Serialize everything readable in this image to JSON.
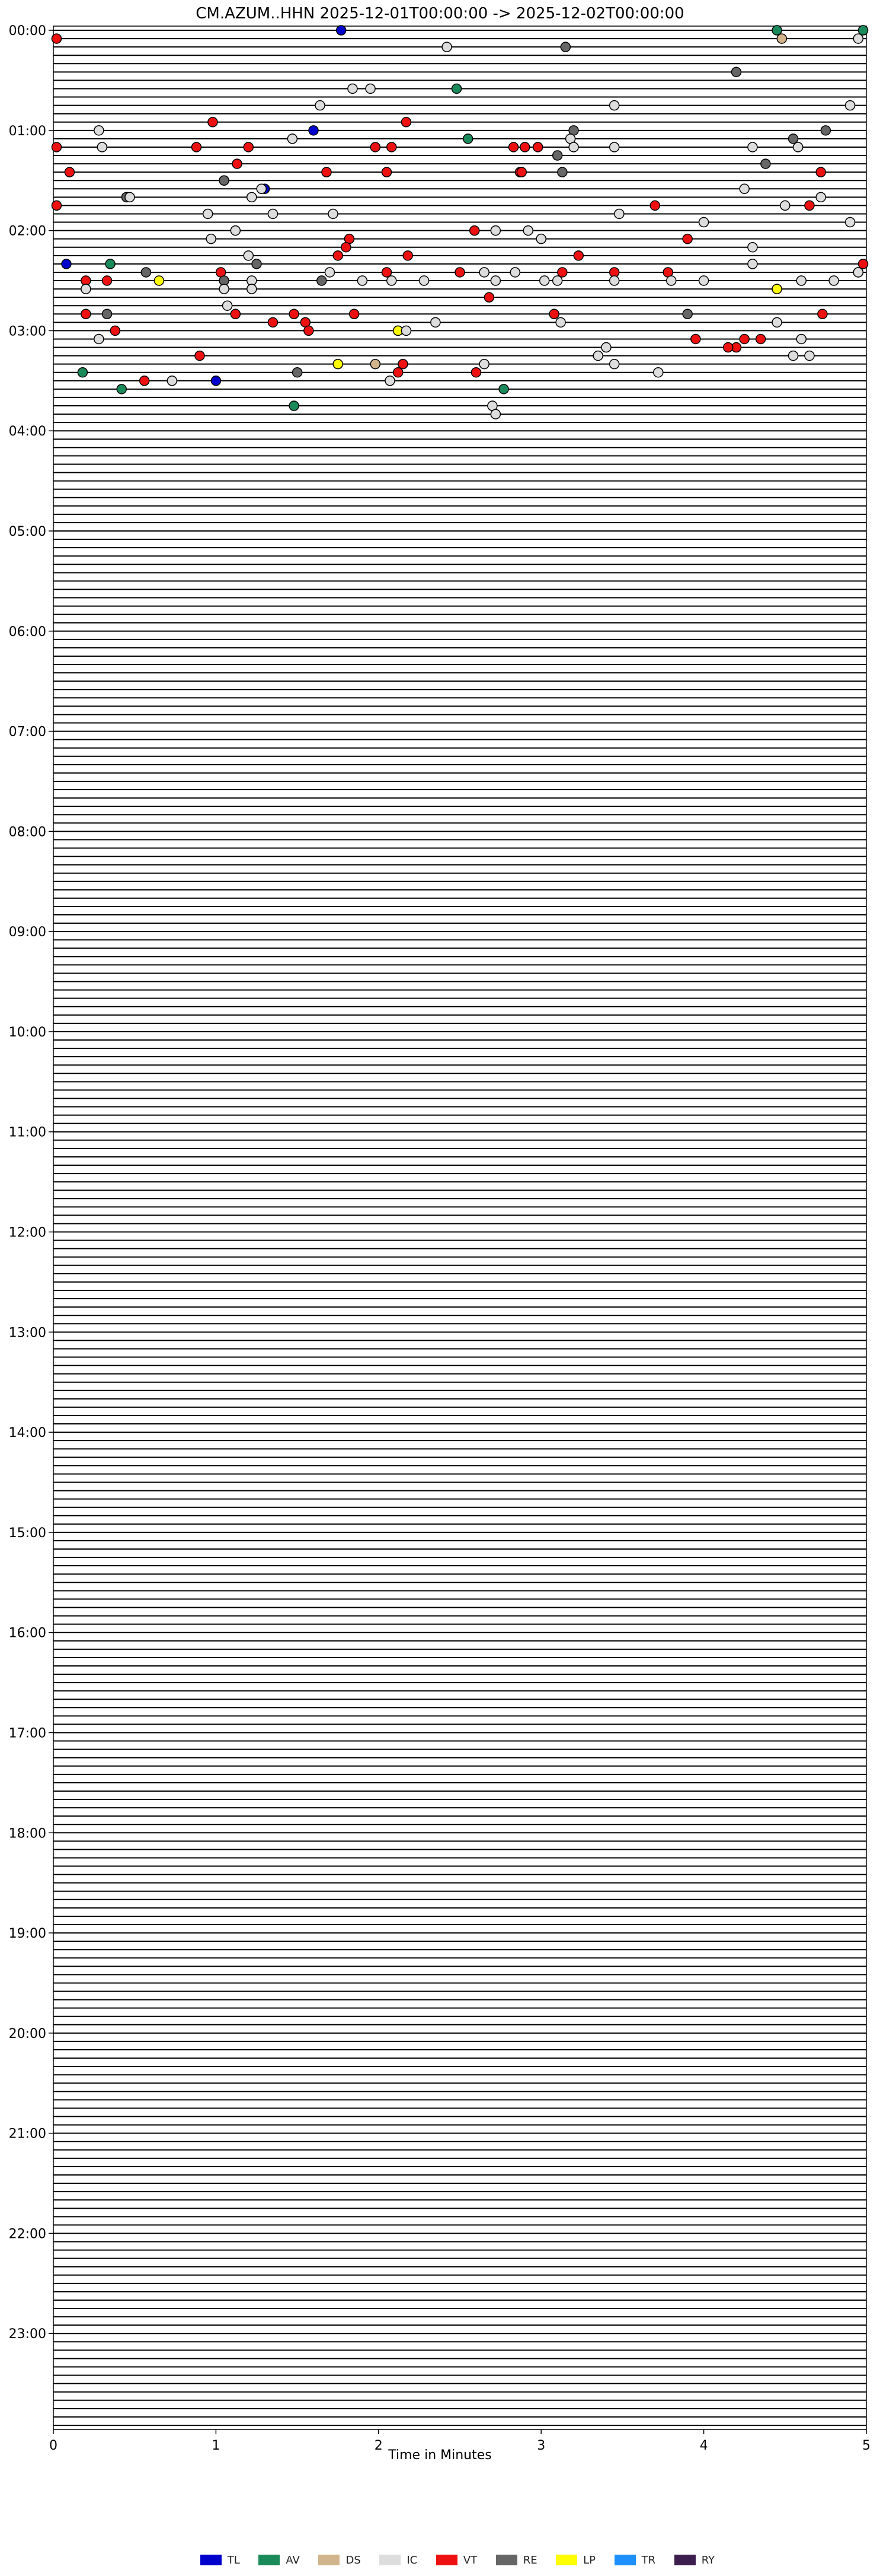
{
  "title": "CM.AZUM..HHN  2025-12-01T00:00:00 -> 2025-12-02T00:00:00",
  "chart_data": {
    "type": "scatter",
    "title": "CM.AZUM..HHN  2025-12-01T00:00:00 -> 2025-12-02T00:00:00",
    "xlabel": "Time in Minutes",
    "xlim": [
      0,
      5
    ],
    "x_ticks": [
      "0",
      "1",
      "2",
      "3",
      "4",
      "5"
    ],
    "row_minutes": 5,
    "rows": 288,
    "y_ticks": [
      "00:00",
      "01:00",
      "02:00",
      "03:00",
      "04:00",
      "05:00",
      "06:00",
      "07:00",
      "08:00",
      "09:00",
      "10:00",
      "11:00",
      "12:00",
      "13:00",
      "14:00",
      "15:00",
      "16:00",
      "17:00",
      "18:00",
      "19:00",
      "20:00",
      "21:00",
      "22:00",
      "23:00"
    ],
    "classes": [
      {
        "code": "TL",
        "color": "#0000cc"
      },
      {
        "code": "AV",
        "color": "#1a8a5a"
      },
      {
        "code": "DS",
        "color": "#d2b48c"
      },
      {
        "code": "IC",
        "color": "#dddddd"
      },
      {
        "code": "VT",
        "color": "#ee1111"
      },
      {
        "code": "RE",
        "color": "#666666"
      },
      {
        "code": "LP",
        "color": "#ffff00"
      },
      {
        "code": "TR",
        "color": "#1e90ff"
      },
      {
        "code": "RY",
        "color": "#3d1f4f"
      }
    ],
    "unclassified_color": "#ffffff",
    "events": [
      [
        "00:00",
        1.77,
        "TL"
      ],
      [
        "00:00",
        4.45,
        "AV"
      ],
      [
        "00:00",
        4.98,
        "AV"
      ],
      [
        "00:05",
        4.48,
        "DS"
      ],
      [
        "00:05",
        4.95,
        "IC"
      ],
      [
        "00:05",
        0.02,
        "VT"
      ],
      [
        "00:10",
        2.42,
        "IC"
      ],
      [
        "00:10",
        3.15,
        "RE"
      ],
      [
        "00:25",
        4.2,
        "RE"
      ],
      [
        "00:35",
        2.48,
        "AV"
      ],
      [
        "00:35",
        1.84,
        "IC"
      ],
      [
        "00:35",
        1.95,
        "IC"
      ],
      [
        "00:45",
        1.64,
        "IC"
      ],
      [
        "00:45",
        3.45,
        "IC"
      ],
      [
        "00:45",
        4.9,
        "IC"
      ],
      [
        "00:55",
        0.98,
        "VT"
      ],
      [
        "00:55",
        2.17,
        "VT"
      ],
      [
        "01:00",
        0.28,
        "IC"
      ],
      [
        "01:00",
        1.6,
        "TL"
      ],
      [
        "01:00",
        3.2,
        "RE"
      ],
      [
        "01:00",
        4.75,
        "RE"
      ],
      [
        "01:05",
        1.47,
        "IC"
      ],
      [
        "01:05",
        2.55,
        "AV"
      ],
      [
        "01:05",
        3.18,
        "IC"
      ],
      [
        "01:05",
        4.55,
        "RE"
      ],
      [
        "01:10",
        0.02,
        "VT"
      ],
      [
        "01:10",
        0.3,
        "IC"
      ],
      [
        "01:10",
        0.88,
        "VT"
      ],
      [
        "01:10",
        1.2,
        "VT"
      ],
      [
        "01:10",
        1.98,
        "VT"
      ],
      [
        "01:10",
        2.08,
        "VT"
      ],
      [
        "01:10",
        2.83,
        "VT"
      ],
      [
        "01:10",
        2.9,
        "VT"
      ],
      [
        "01:10",
        2.98,
        "VT"
      ],
      [
        "01:10",
        3.2,
        "IC"
      ],
      [
        "01:10",
        3.45,
        "IC"
      ],
      [
        "01:10",
        4.3,
        "IC"
      ],
      [
        "01:10",
        4.58,
        "IC"
      ],
      [
        "01:15",
        3.1,
        "RE"
      ],
      [
        "01:20",
        1.13,
        "VT"
      ],
      [
        "01:20",
        4.38,
        "RE"
      ],
      [
        "01:25",
        0.1,
        "VT"
      ],
      [
        "01:25",
        1.68,
        "VT"
      ],
      [
        "01:25",
        2.05,
        "VT"
      ],
      [
        "01:25",
        2.87,
        "VT"
      ],
      [
        "01:25",
        2.88,
        "VT"
      ],
      [
        "01:25",
        3.13,
        "RE"
      ],
      [
        "01:25",
        4.72,
        "VT"
      ],
      [
        "01:30",
        1.05,
        "LP"
      ],
      [
        "01:30",
        1.05,
        "RE"
      ],
      [
        "01:35",
        1.3,
        "TL"
      ],
      [
        "01:35",
        1.28,
        "IC"
      ],
      [
        "01:35",
        4.25,
        "IC"
      ],
      [
        "01:40",
        0.45,
        "AV"
      ],
      [
        "01:40",
        0.45,
        "RE"
      ],
      [
        "01:40",
        0.47,
        "IC"
      ],
      [
        "01:40",
        1.22,
        "IC"
      ],
      [
        "01:40",
        4.72,
        "IC"
      ],
      [
        "01:45",
        0.02,
        "VT"
      ],
      [
        "01:45",
        3.7,
        "VT"
      ],
      [
        "01:45",
        4.5,
        "IC"
      ],
      [
        "01:45",
        4.65,
        "VT"
      ],
      [
        "01:50",
        0.95,
        "IC"
      ],
      [
        "01:50",
        1.35,
        "IC"
      ],
      [
        "01:50",
        1.72,
        "IC"
      ],
      [
        "01:50",
        3.48,
        "IC"
      ],
      [
        "01:55",
        4.0,
        "IC"
      ],
      [
        "01:55",
        4.9,
        "IC"
      ],
      [
        "02:00",
        1.12,
        "IC"
      ],
      [
        "02:00",
        2.59,
        "VT"
      ],
      [
        "02:00",
        2.72,
        "IC"
      ],
      [
        "02:00",
        2.92,
        "IC"
      ],
      [
        "02:05",
        0.97,
        "IC"
      ],
      [
        "02:05",
        1.82,
        "VT"
      ],
      [
        "02:05",
        3.0,
        "IC"
      ],
      [
        "02:05",
        3.9,
        "VT"
      ],
      [
        "02:10",
        1.8,
        "VT"
      ],
      [
        "02:10",
        4.3,
        "IC"
      ],
      [
        "02:15",
        1.2,
        "IC"
      ],
      [
        "02:15",
        1.75,
        "VT"
      ],
      [
        "02:15",
        2.18,
        "VT"
      ],
      [
        "02:15",
        3.23,
        "VT"
      ],
      [
        "02:20",
        0.08,
        "TL"
      ],
      [
        "02:20",
        0.35,
        "AV"
      ],
      [
        "02:20",
        1.25,
        "RE"
      ],
      [
        "02:20",
        4.3,
        "IC"
      ],
      [
        "02:20",
        4.98,
        "VT"
      ],
      [
        "02:25",
        0.57,
        "RE"
      ],
      [
        "02:25",
        1.03,
        "VT"
      ],
      [
        "02:25",
        1.7,
        "IC"
      ],
      [
        "02:25",
        2.05,
        "VT"
      ],
      [
        "02:25",
        2.5,
        "VT"
      ],
      [
        "02:25",
        2.65,
        "IC"
      ],
      [
        "02:25",
        2.84,
        "IC"
      ],
      [
        "02:25",
        3.13,
        "VT"
      ],
      [
        "02:25",
        3.45,
        "VT"
      ],
      [
        "02:25",
        3.78,
        "VT"
      ],
      [
        "02:25",
        4.95,
        "RE"
      ],
      [
        "02:25",
        4.95,
        "IC"
      ],
      [
        "02:30",
        0.2,
        "VT"
      ],
      [
        "02:30",
        0.33,
        "VT"
      ],
      [
        "02:30",
        0.65,
        "LP"
      ],
      [
        "02:30",
        1.05,
        "RE"
      ],
      [
        "02:30",
        1.22,
        "IC"
      ],
      [
        "02:30",
        1.65,
        "RE"
      ],
      [
        "02:30",
        1.9,
        "IC"
      ],
      [
        "02:30",
        2.08,
        "IC"
      ],
      [
        "02:30",
        2.28,
        "IC"
      ],
      [
        "02:30",
        2.72,
        "IC"
      ],
      [
        "02:30",
        3.02,
        "IC"
      ],
      [
        "02:30",
        3.1,
        "IC"
      ],
      [
        "02:30",
        3.45,
        "IC"
      ],
      [
        "02:30",
        3.8,
        "IC"
      ],
      [
        "02:30",
        4.0,
        "IC"
      ],
      [
        "02:30",
        4.6,
        "IC"
      ],
      [
        "02:30",
        4.8,
        "IC"
      ],
      [
        "02:35",
        0.2,
        "IC"
      ],
      [
        "02:35",
        1.05,
        "IC"
      ],
      [
        "02:35",
        1.22,
        "IC"
      ],
      [
        "02:35",
        4.45,
        "LP"
      ],
      [
        "02:40",
        2.68,
        "VT"
      ],
      [
        "02:45",
        1.07,
        "IC"
      ],
      [
        "02:50",
        0.33,
        "RE"
      ],
      [
        "02:50",
        0.2,
        "VT"
      ],
      [
        "02:50",
        1.12,
        "VT"
      ],
      [
        "02:50",
        1.48,
        "VT"
      ],
      [
        "02:50",
        1.85,
        "VT"
      ],
      [
        "02:50",
        3.08,
        "VT"
      ],
      [
        "02:50",
        3.9,
        "RE"
      ],
      [
        "02:50",
        4.73,
        "VT"
      ],
      [
        "02:55",
        1.35,
        "VT"
      ],
      [
        "02:55",
        1.55,
        "VT"
      ],
      [
        "02:55",
        2.35,
        "IC"
      ],
      [
        "02:55",
        3.12,
        "IC"
      ],
      [
        "02:55",
        4.45,
        "IC"
      ],
      [
        "03:00",
        0.38,
        "VT"
      ],
      [
        "03:00",
        1.57,
        "VT"
      ],
      [
        "03:00",
        2.12,
        "IC"
      ],
      [
        "03:00",
        2.12,
        "LP"
      ],
      [
        "03:00",
        2.17,
        "IC"
      ],
      [
        "03:05",
        0.28,
        "IC"
      ],
      [
        "03:05",
        3.95,
        "VT"
      ],
      [
        "03:05",
        4.25,
        "VT"
      ],
      [
        "03:05",
        4.35,
        "VT"
      ],
      [
        "03:05",
        4.6,
        "IC"
      ],
      [
        "03:10",
        3.4,
        "IC"
      ],
      [
        "03:10",
        4.2,
        "VT"
      ],
      [
        "03:10",
        4.15,
        "VT"
      ],
      [
        "03:15",
        0.9,
        "VT"
      ],
      [
        "03:15",
        3.35,
        "IC"
      ],
      [
        "03:15",
        4.65,
        "IC"
      ],
      [
        "03:15",
        4.55,
        "IC"
      ],
      [
        "03:20",
        1.98,
        "DS"
      ],
      [
        "03:20",
        1.75,
        "LP"
      ],
      [
        "03:20",
        2.65,
        "IC"
      ],
      [
        "03:20",
        3.45,
        "IC"
      ],
      [
        "03:20",
        2.15,
        "VT"
      ],
      [
        "03:25",
        0.18,
        "AV"
      ],
      [
        "03:25",
        1.5,
        "RE"
      ],
      [
        "03:25",
        2.12,
        "VT"
      ],
      [
        "03:25",
        2.6,
        "VT"
      ],
      [
        "03:25",
        3.72,
        "IC"
      ],
      [
        "03:30",
        0.56,
        "VT"
      ],
      [
        "03:30",
        0.73,
        "IC"
      ],
      [
        "03:30",
        1.0,
        "TL"
      ],
      [
        "03:30",
        2.07,
        "IC"
      ],
      [
        "03:35",
        0.42,
        "AV"
      ],
      [
        "03:35",
        2.77,
        "AV"
      ],
      [
        "03:45",
        1.48,
        "AV"
      ],
      [
        "03:45",
        2.7,
        "IC"
      ],
      [
        "03:50",
        2.72,
        "IC"
      ]
    ]
  }
}
